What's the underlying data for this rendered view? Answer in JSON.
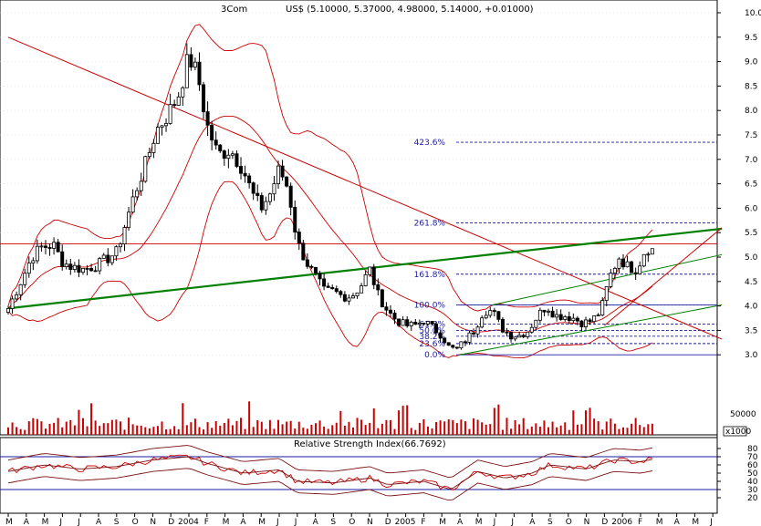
{
  "header": {
    "symbol": "3Com",
    "quote": "US$ (5.10000, 5.37000, 4.98000, 5.14000, +0.01000)"
  },
  "colors": {
    "candle": "#000000",
    "bollinger": "#cc0000",
    "trend_red": "#cc0000",
    "trend_green": "#008000",
    "fib": "#1a1aa0",
    "rsi_line": "#cc0000",
    "rsi_band": "#1a1aa0"
  },
  "chart_data": [
    {
      "type": "candlestick",
      "title": "3Com",
      "ylim": [
        2.9,
        10.0
      ],
      "y_ticks": [
        "10.0",
        "9.5",
        "9.0",
        "8.5",
        "8.0",
        "7.5",
        "7.0",
        "6.5",
        "6.0",
        "5.5",
        "5.0",
        "4.5",
        "4.0",
        "3.5",
        "3.0"
      ],
      "x_labels": [
        "M",
        "A",
        "M",
        "J",
        "J",
        "A",
        "S",
        "O",
        "N",
        "D",
        "2004",
        "F",
        "M",
        "A",
        "M",
        "J",
        "J",
        "A",
        "S",
        "O",
        "N",
        "D",
        "2005",
        "F",
        "M",
        "A",
        "M",
        "J",
        "J",
        "A",
        "S",
        "O",
        "N",
        "D",
        "2006",
        "F",
        "M",
        "A",
        "M",
        "J"
      ],
      "close_path": [
        {
          "m": 0,
          "c": 3.95
        },
        {
          "m": 0.7,
          "c": 4.5
        },
        {
          "m": 1.3,
          "c": 5.0
        },
        {
          "m": 1.8,
          "c": 5.2
        },
        {
          "m": 2.5,
          "c": 5.25
        },
        {
          "m": 3.0,
          "c": 4.9
        },
        {
          "m": 3.5,
          "c": 4.8
        },
        {
          "m": 4.2,
          "c": 4.75
        },
        {
          "m": 5.0,
          "c": 4.85
        },
        {
          "m": 6.0,
          "c": 5.1
        },
        {
          "m": 6.5,
          "c": 5.7
        },
        {
          "m": 7.0,
          "c": 6.3
        },
        {
          "m": 7.6,
          "c": 6.9
        },
        {
          "m": 8.2,
          "c": 7.6
        },
        {
          "m": 8.8,
          "c": 7.9
        },
        {
          "m": 9.4,
          "c": 8.3
        },
        {
          "m": 10.0,
          "c": 9.1
        },
        {
          "m": 10.5,
          "c": 8.7
        },
        {
          "m": 11.0,
          "c": 7.7
        },
        {
          "m": 11.6,
          "c": 7.1
        },
        {
          "m": 12.3,
          "c": 7.2
        },
        {
          "m": 13.0,
          "c": 6.8
        },
        {
          "m": 13.5,
          "c": 6.3
        },
        {
          "m": 14.0,
          "c": 6.0
        },
        {
          "m": 14.5,
          "c": 6.3
        },
        {
          "m": 15.0,
          "c": 6.8
        },
        {
          "m": 15.5,
          "c": 6.4
        },
        {
          "m": 16.0,
          "c": 5.3
        },
        {
          "m": 16.5,
          "c": 4.9
        },
        {
          "m": 17.0,
          "c": 4.6
        },
        {
          "m": 17.5,
          "c": 4.3
        },
        {
          "m": 18.0,
          "c": 4.3
        },
        {
          "m": 18.5,
          "c": 4.2
        },
        {
          "m": 19.0,
          "c": 4.2
        },
        {
          "m": 19.5,
          "c": 4.4
        },
        {
          "m": 20.0,
          "c": 4.75
        },
        {
          "m": 20.5,
          "c": 4.2
        },
        {
          "m": 21.0,
          "c": 3.9
        },
        {
          "m": 21.5,
          "c": 3.7
        },
        {
          "m": 22.0,
          "c": 3.6
        },
        {
          "m": 22.5,
          "c": 3.6
        },
        {
          "m": 23.0,
          "c": 3.7
        },
        {
          "m": 23.5,
          "c": 3.55
        },
        {
          "m": 24.0,
          "c": 3.4
        },
        {
          "m": 24.4,
          "c": 3.15
        },
        {
          "m": 24.8,
          "c": 3.1
        },
        {
          "m": 25.3,
          "c": 3.3
        },
        {
          "m": 25.8,
          "c": 3.5
        },
        {
          "m": 26.3,
          "c": 3.9
        },
        {
          "m": 26.8,
          "c": 3.9
        },
        {
          "m": 27.3,
          "c": 3.55
        },
        {
          "m": 27.8,
          "c": 3.4
        },
        {
          "m": 28.3,
          "c": 3.4
        },
        {
          "m": 28.8,
          "c": 3.5
        },
        {
          "m": 29.3,
          "c": 3.8
        },
        {
          "m": 29.8,
          "c": 4.0
        },
        {
          "m": 30.3,
          "c": 3.8
        },
        {
          "m": 30.8,
          "c": 3.8
        },
        {
          "m": 31.3,
          "c": 3.75
        },
        {
          "m": 31.8,
          "c": 3.65
        },
        {
          "m": 32.3,
          "c": 3.7
        },
        {
          "m": 32.8,
          "c": 3.9
        },
        {
          "m": 33.3,
          "c": 4.6
        },
        {
          "m": 33.8,
          "c": 5.0
        },
        {
          "m": 34.3,
          "c": 4.8
        },
        {
          "m": 34.8,
          "c": 4.75
        },
        {
          "m": 35.3,
          "c": 5.2
        },
        {
          "m": 35.7,
          "c": 5.14
        }
      ],
      "fibonacci_levels": [
        {
          "label": "423.6%",
          "value": 7.35
        },
        {
          "label": "261.8%",
          "value": 5.7
        },
        {
          "label": "161.8%",
          "value": 4.65
        },
        {
          "label": "100.0%",
          "value": 4.02
        },
        {
          "label": "61.8%",
          "value": 3.63
        },
        {
          "label": "50.0%",
          "value": 3.5
        },
        {
          "label": "38.2%",
          "value": 3.38
        },
        {
          "label": "23.6%",
          "value": 3.23
        },
        {
          "label": "0.0%",
          "value": 3.0
        }
      ],
      "horizontal_line": 5.27,
      "trendlines": [
        {
          "color": "red",
          "from": {
            "m": 0,
            "v": 9.5
          },
          "to": {
            "m": 39.5,
            "v": 3.32
          }
        },
        {
          "color": "green",
          "from": {
            "m": 0,
            "v": 3.95
          },
          "to": {
            "m": 39.5,
            "v": 5.58
          }
        },
        {
          "color": "green",
          "from": {
            "m": 25.0,
            "v": 3.0
          },
          "to": {
            "m": 39.5,
            "v": 4.02
          }
        },
        {
          "color": "green",
          "from": {
            "m": 26.8,
            "v": 4.02
          },
          "to": {
            "m": 39.5,
            "v": 5.05
          }
        },
        {
          "color": "red",
          "from": {
            "m": 33.0,
            "v": 3.6
          },
          "to": {
            "m": 39.5,
            "v": 5.6
          }
        }
      ]
    },
    {
      "type": "bar",
      "title": "Volume",
      "y_ticks": [
        "50000"
      ],
      "units_label": "x1000"
    },
    {
      "type": "line",
      "title": "Relative Strength Index(66.7692)",
      "ylim": [
        15,
        85
      ],
      "y_ticks": [
        "80",
        "70",
        "60",
        "50",
        "40",
        "30",
        "20"
      ],
      "bands": [
        70,
        30
      ],
      "rsi_path": [
        {
          "m": 0,
          "v": 52
        },
        {
          "m": 2,
          "v": 60
        },
        {
          "m": 4,
          "v": 55
        },
        {
          "m": 6,
          "v": 58
        },
        {
          "m": 8,
          "v": 66
        },
        {
          "m": 10,
          "v": 70
        },
        {
          "m": 11,
          "v": 62
        },
        {
          "m": 13,
          "v": 50
        },
        {
          "m": 15,
          "v": 54
        },
        {
          "m": 16,
          "v": 40
        },
        {
          "m": 18,
          "v": 38
        },
        {
          "m": 20,
          "v": 44
        },
        {
          "m": 21,
          "v": 36
        },
        {
          "m": 23,
          "v": 40
        },
        {
          "m": 24.5,
          "v": 30
        },
        {
          "m": 26,
          "v": 52
        },
        {
          "m": 27.5,
          "v": 44
        },
        {
          "m": 29,
          "v": 50
        },
        {
          "m": 30,
          "v": 60
        },
        {
          "m": 32,
          "v": 55
        },
        {
          "m": 33.5,
          "v": 66
        },
        {
          "m": 35,
          "v": 64
        },
        {
          "m": 35.7,
          "v": 67
        }
      ]
    }
  ]
}
